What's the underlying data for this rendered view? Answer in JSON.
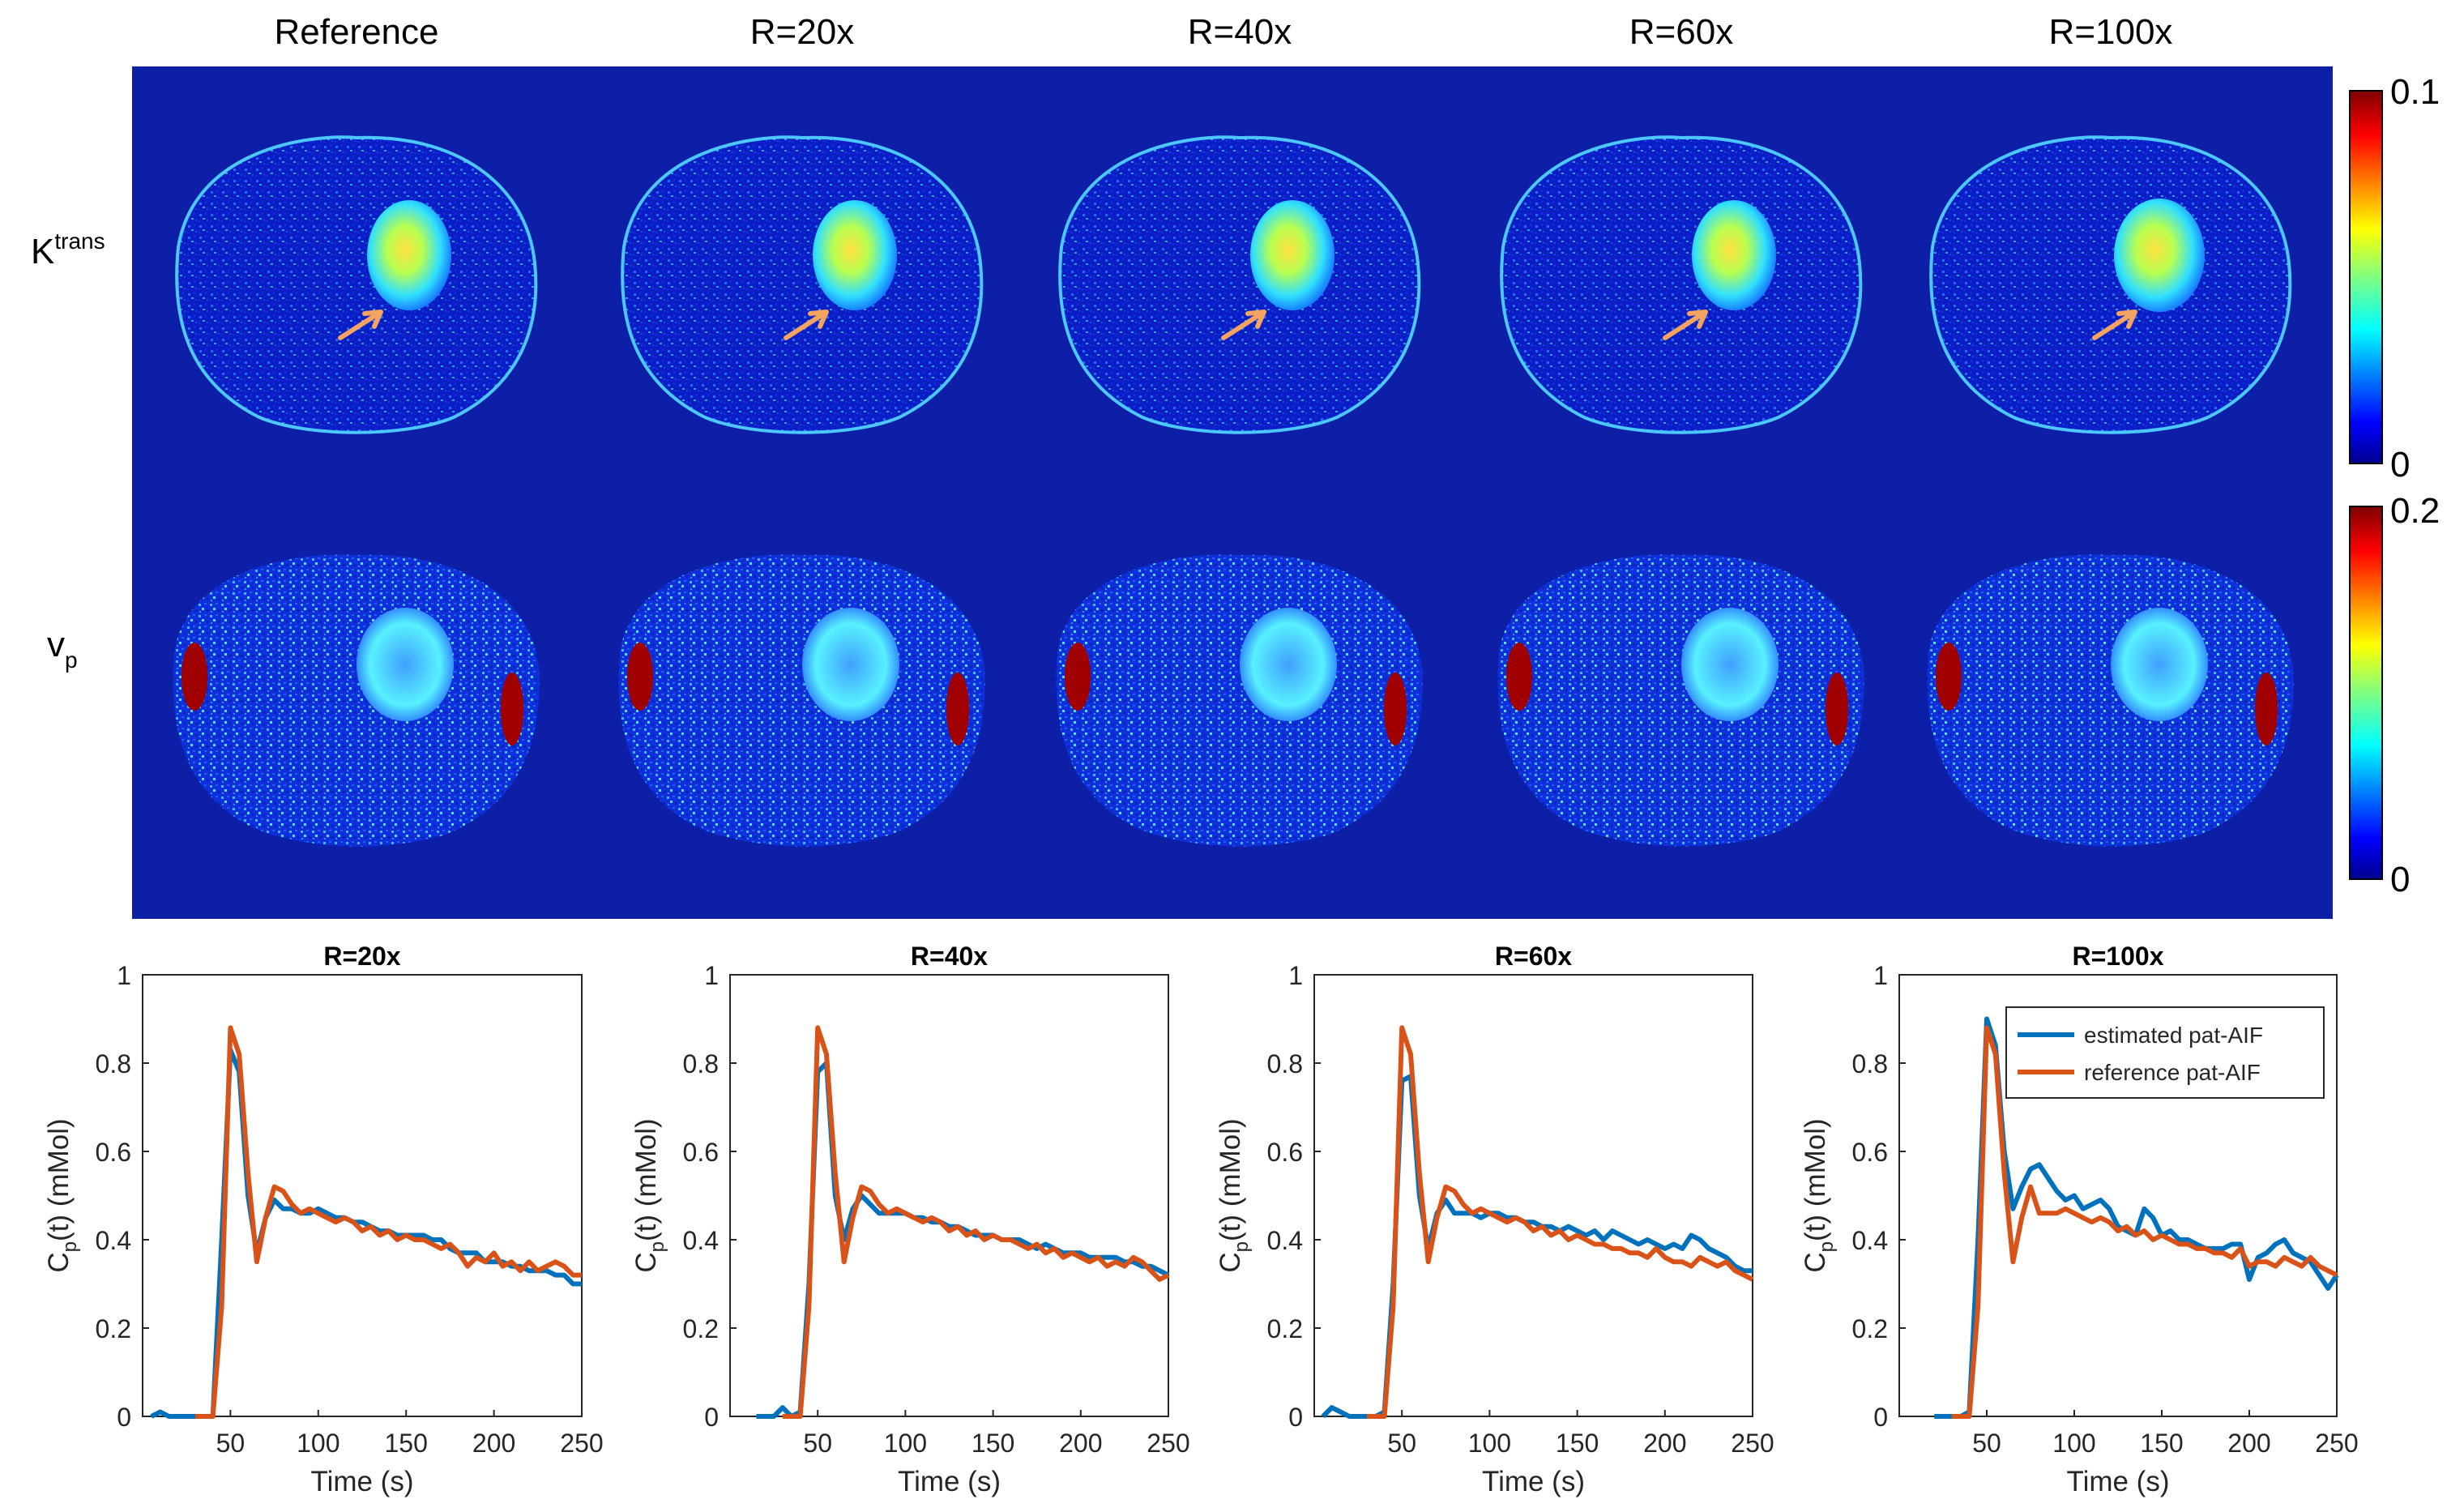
{
  "figure": {
    "column_titles": [
      "Reference",
      "R=20x",
      "R=40x",
      "R=60x",
      "R=100x"
    ],
    "row_labels": [
      {
        "main": "K",
        "sup": "trans"
      },
      {
        "main": "v",
        "sub": "p"
      }
    ],
    "colorbars": [
      {
        "max_label": "0.1",
        "min_label": "0"
      },
      {
        "max_label": "0.2",
        "min_label": "0"
      }
    ],
    "colors": {
      "map_background": "#0c1fa6",
      "estimated": "#0072bd",
      "reference": "#d95319",
      "arrow": "#f4a460"
    }
  },
  "chart_data": [
    {
      "type": "line",
      "title": "R=20x",
      "xlabel": "Time (s)",
      "ylabel_main": "C",
      "ylabel_sub": "p",
      "ylabel_tail": "(t) (mMol)",
      "xlim": [
        0,
        250
      ],
      "ylim": [
        0,
        1
      ],
      "xticks": [
        50,
        100,
        150,
        200,
        250
      ],
      "yticks": [
        0,
        0.2,
        0.4,
        0.6,
        0.8,
        1
      ],
      "ytick_labels": [
        "0",
        "0.2",
        "0.4",
        "0.6",
        "0.8",
        "1"
      ],
      "legend": null,
      "series": [
        {
          "name": "estimated pat-AIF",
          "color": "#0072bd",
          "x": [
            5,
            10,
            15,
            20,
            25,
            30,
            35,
            40,
            45,
            50,
            55,
            60,
            65,
            70,
            75,
            80,
            85,
            90,
            95,
            100,
            105,
            110,
            115,
            120,
            125,
            130,
            135,
            140,
            145,
            150,
            155,
            160,
            165,
            170,
            175,
            180,
            185,
            190,
            195,
            200,
            205,
            210,
            215,
            220,
            225,
            230,
            235,
            240,
            245,
            250
          ],
          "y": [
            0,
            0.01,
            0,
            0,
            0,
            0,
            0,
            0,
            0.4,
            0.83,
            0.78,
            0.5,
            0.37,
            0.45,
            0.49,
            0.47,
            0.47,
            0.46,
            0.46,
            0.47,
            0.46,
            0.45,
            0.45,
            0.44,
            0.44,
            0.43,
            0.42,
            0.42,
            0.41,
            0.41,
            0.41,
            0.41,
            0.4,
            0.4,
            0.38,
            0.37,
            0.37,
            0.37,
            0.35,
            0.35,
            0.35,
            0.34,
            0.34,
            0.33,
            0.33,
            0.33,
            0.32,
            0.32,
            0.3,
            0.3
          ]
        },
        {
          "name": "reference pat-AIF",
          "color": "#d95319",
          "x": [
            30,
            35,
            40,
            45,
            50,
            55,
            60,
            65,
            70,
            75,
            80,
            85,
            90,
            95,
            100,
            105,
            110,
            115,
            120,
            125,
            130,
            135,
            140,
            145,
            150,
            155,
            160,
            165,
            170,
            175,
            180,
            185,
            190,
            195,
            200,
            205,
            210,
            215,
            220,
            225,
            230,
            235,
            240,
            245,
            250
          ],
          "y": [
            0,
            0,
            0,
            0.25,
            0.88,
            0.82,
            0.55,
            0.35,
            0.45,
            0.52,
            0.51,
            0.48,
            0.46,
            0.47,
            0.46,
            0.45,
            0.44,
            0.45,
            0.44,
            0.42,
            0.43,
            0.41,
            0.42,
            0.4,
            0.41,
            0.4,
            0.4,
            0.39,
            0.38,
            0.39,
            0.37,
            0.34,
            0.36,
            0.35,
            0.37,
            0.34,
            0.35,
            0.33,
            0.35,
            0.33,
            0.34,
            0.35,
            0.34,
            0.32,
            0.32
          ]
        }
      ]
    },
    {
      "type": "line",
      "title": "R=40x",
      "xlabel": "Time (s)",
      "ylabel_main": "C",
      "ylabel_sub": "p",
      "ylabel_tail": "(t) (mMol)",
      "xlim": [
        0,
        250
      ],
      "ylim": [
        0,
        1
      ],
      "xticks": [
        50,
        100,
        150,
        200,
        250
      ],
      "yticks": [
        0,
        0.2,
        0.4,
        0.6,
        0.8,
        1
      ],
      "ytick_labels": [
        "0",
        "0.2",
        "0.4",
        "0.6",
        "0.8",
        "1"
      ],
      "legend": null,
      "series": [
        {
          "name": "estimated pat-AIF",
          "color": "#0072bd",
          "x": [
            15,
            20,
            25,
            30,
            35,
            40,
            45,
            50,
            55,
            60,
            65,
            70,
            75,
            80,
            85,
            90,
            95,
            100,
            105,
            110,
            115,
            120,
            125,
            130,
            135,
            140,
            145,
            150,
            155,
            160,
            165,
            170,
            175,
            180,
            185,
            190,
            195,
            200,
            205,
            210,
            215,
            220,
            225,
            230,
            235,
            240,
            245,
            250
          ],
          "y": [
            0,
            0,
            0,
            0.02,
            0,
            0.01,
            0.3,
            0.78,
            0.8,
            0.5,
            0.4,
            0.47,
            0.5,
            0.48,
            0.46,
            0.46,
            0.46,
            0.46,
            0.45,
            0.45,
            0.44,
            0.44,
            0.43,
            0.43,
            0.42,
            0.41,
            0.41,
            0.41,
            0.4,
            0.4,
            0.4,
            0.39,
            0.38,
            0.39,
            0.38,
            0.37,
            0.37,
            0.37,
            0.36,
            0.36,
            0.36,
            0.36,
            0.35,
            0.35,
            0.34,
            0.34,
            0.33,
            0.32
          ]
        },
        {
          "name": "reference pat-AIF",
          "color": "#d95319",
          "x": [
            30,
            35,
            40,
            45,
            50,
            55,
            60,
            65,
            70,
            75,
            80,
            85,
            90,
            95,
            100,
            105,
            110,
            115,
            120,
            125,
            130,
            135,
            140,
            145,
            150,
            155,
            160,
            165,
            170,
            175,
            180,
            185,
            190,
            195,
            200,
            205,
            210,
            215,
            220,
            225,
            230,
            235,
            240,
            245,
            250
          ],
          "y": [
            0,
            0,
            0,
            0.25,
            0.88,
            0.82,
            0.55,
            0.35,
            0.45,
            0.52,
            0.51,
            0.48,
            0.46,
            0.47,
            0.46,
            0.45,
            0.44,
            0.45,
            0.44,
            0.42,
            0.43,
            0.41,
            0.42,
            0.4,
            0.41,
            0.4,
            0.4,
            0.39,
            0.38,
            0.39,
            0.37,
            0.38,
            0.36,
            0.37,
            0.36,
            0.35,
            0.36,
            0.34,
            0.35,
            0.34,
            0.36,
            0.35,
            0.33,
            0.31,
            0.32
          ]
        }
      ]
    },
    {
      "type": "line",
      "title": "R=60x",
      "xlabel": "Time (s)",
      "ylabel_main": "C",
      "ylabel_sub": "p",
      "ylabel_tail": "(t) (mMol)",
      "xlim": [
        0,
        250
      ],
      "ylim": [
        0,
        1
      ],
      "xticks": [
        50,
        100,
        150,
        200,
        250
      ],
      "yticks": [
        0,
        0.2,
        0.4,
        0.6,
        0.8,
        1
      ],
      "ytick_labels": [
        "0",
        "0.2",
        "0.4",
        "0.6",
        "0.8",
        "1"
      ],
      "legend": null,
      "series": [
        {
          "name": "estimated pat-AIF",
          "color": "#0072bd",
          "x": [
            5,
            10,
            15,
            20,
            25,
            30,
            35,
            40,
            45,
            50,
            55,
            60,
            65,
            70,
            75,
            80,
            85,
            90,
            95,
            100,
            105,
            110,
            115,
            120,
            125,
            130,
            135,
            140,
            145,
            150,
            155,
            160,
            165,
            170,
            175,
            180,
            185,
            190,
            195,
            200,
            205,
            210,
            215,
            220,
            225,
            230,
            235,
            240,
            245,
            250
          ],
          "y": [
            0,
            0.02,
            0.01,
            0,
            0,
            0,
            0,
            0.01,
            0.3,
            0.76,
            0.77,
            0.5,
            0.38,
            0.46,
            0.49,
            0.46,
            0.46,
            0.46,
            0.45,
            0.46,
            0.46,
            0.45,
            0.45,
            0.44,
            0.44,
            0.43,
            0.43,
            0.42,
            0.43,
            0.42,
            0.41,
            0.42,
            0.4,
            0.42,
            0.41,
            0.4,
            0.39,
            0.4,
            0.39,
            0.38,
            0.39,
            0.38,
            0.41,
            0.4,
            0.38,
            0.37,
            0.36,
            0.34,
            0.33,
            0.33
          ]
        },
        {
          "name": "reference pat-AIF",
          "color": "#d95319",
          "x": [
            30,
            35,
            40,
            45,
            50,
            55,
            60,
            65,
            70,
            75,
            80,
            85,
            90,
            95,
            100,
            105,
            110,
            115,
            120,
            125,
            130,
            135,
            140,
            145,
            150,
            155,
            160,
            165,
            170,
            175,
            180,
            185,
            190,
            195,
            200,
            205,
            210,
            215,
            220,
            225,
            230,
            235,
            240,
            245,
            250
          ],
          "y": [
            0,
            0,
            0,
            0.25,
            0.88,
            0.82,
            0.55,
            0.35,
            0.45,
            0.52,
            0.51,
            0.48,
            0.46,
            0.47,
            0.46,
            0.45,
            0.44,
            0.45,
            0.44,
            0.42,
            0.43,
            0.41,
            0.42,
            0.4,
            0.41,
            0.4,
            0.39,
            0.39,
            0.38,
            0.38,
            0.37,
            0.37,
            0.36,
            0.38,
            0.36,
            0.35,
            0.35,
            0.34,
            0.36,
            0.35,
            0.34,
            0.35,
            0.33,
            0.32,
            0.31
          ]
        }
      ]
    },
    {
      "type": "line",
      "title": "R=100x",
      "xlabel": "Time (s)",
      "ylabel_main": "C",
      "ylabel_sub": "p",
      "ylabel_tail": "(t) (mMol)",
      "xlim": [
        0,
        250
      ],
      "ylim": [
        0,
        1
      ],
      "xticks": [
        50,
        100,
        150,
        200,
        250
      ],
      "yticks": [
        0,
        0.2,
        0.4,
        0.6,
        0.8,
        1
      ],
      "ytick_labels": [
        "0",
        "0.2",
        "0.4",
        "0.6",
        "0.8",
        "1"
      ],
      "legend": {
        "position": "top-right",
        "entries": [
          "estimated pat-AIF",
          "reference pat-AIF"
        ]
      },
      "series": [
        {
          "name": "estimated pat-AIF",
          "color": "#0072bd",
          "x": [
            20,
            25,
            30,
            35,
            40,
            45,
            50,
            55,
            60,
            65,
            70,
            75,
            80,
            85,
            90,
            95,
            100,
            105,
            110,
            115,
            120,
            125,
            130,
            135,
            140,
            145,
            150,
            155,
            160,
            165,
            170,
            175,
            180,
            185,
            190,
            195,
            200,
            205,
            210,
            215,
            220,
            225,
            230,
            235,
            240,
            245,
            250
          ],
          "y": [
            0,
            0,
            0,
            0,
            0.01,
            0.4,
            0.9,
            0.84,
            0.6,
            0.47,
            0.52,
            0.56,
            0.57,
            0.54,
            0.51,
            0.49,
            0.5,
            0.47,
            0.48,
            0.49,
            0.47,
            0.43,
            0.42,
            0.41,
            0.47,
            0.45,
            0.41,
            0.42,
            0.4,
            0.4,
            0.39,
            0.38,
            0.38,
            0.38,
            0.39,
            0.39,
            0.31,
            0.36,
            0.37,
            0.39,
            0.4,
            0.37,
            0.36,
            0.35,
            0.32,
            0.29,
            0.32
          ]
        },
        {
          "name": "reference pat-AIF",
          "color": "#d95319",
          "x": [
            30,
            35,
            40,
            45,
            50,
            55,
            60,
            65,
            70,
            75,
            80,
            85,
            90,
            95,
            100,
            105,
            110,
            115,
            120,
            125,
            130,
            135,
            140,
            145,
            150,
            155,
            160,
            165,
            170,
            175,
            180,
            185,
            190,
            195,
            200,
            205,
            210,
            215,
            220,
            225,
            230,
            235,
            240,
            245,
            250
          ],
          "y": [
            0,
            0,
            0,
            0.25,
            0.88,
            0.82,
            0.55,
            0.35,
            0.45,
            0.52,
            0.46,
            0.46,
            0.46,
            0.47,
            0.46,
            0.45,
            0.44,
            0.45,
            0.44,
            0.42,
            0.43,
            0.41,
            0.42,
            0.4,
            0.41,
            0.4,
            0.39,
            0.39,
            0.38,
            0.38,
            0.37,
            0.37,
            0.36,
            0.38,
            0.34,
            0.35,
            0.35,
            0.34,
            0.36,
            0.35,
            0.34,
            0.36,
            0.34,
            0.33,
            0.32
          ]
        }
      ]
    }
  ]
}
